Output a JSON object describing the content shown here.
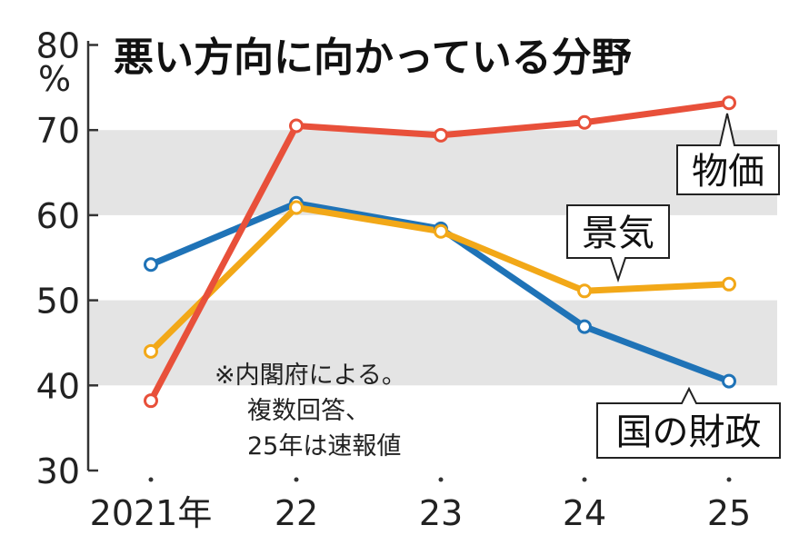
{
  "chart_data": {
    "type": "line",
    "title": "悪い方向に向かっている分野",
    "ylabel": "%",
    "ylim": [
      30,
      80
    ],
    "yticks": [
      "30",
      "40",
      "50",
      "60",
      "70",
      "80"
    ],
    "categories": [
      "2021年",
      "22",
      "23",
      "24",
      "25"
    ],
    "shaded_bands": [
      [
        40,
        50
      ],
      [
        60,
        70
      ]
    ],
    "series": [
      {
        "name": "物価",
        "color": "#e8503a",
        "values": [
          38.2,
          70.5,
          69.4,
          70.9,
          73.2
        ]
      },
      {
        "name": "景気",
        "color": "#f2a818",
        "values": [
          44.0,
          60.9,
          58.1,
          51.1,
          51.9
        ]
      },
      {
        "name": "国の財政",
        "color": "#1f73b7",
        "values": [
          54.2,
          61.4,
          58.4,
          46.9,
          40.5
        ]
      }
    ],
    "note": [
      "※内閣府による。",
      "複数回答、",
      "25年は速報値"
    ]
  }
}
